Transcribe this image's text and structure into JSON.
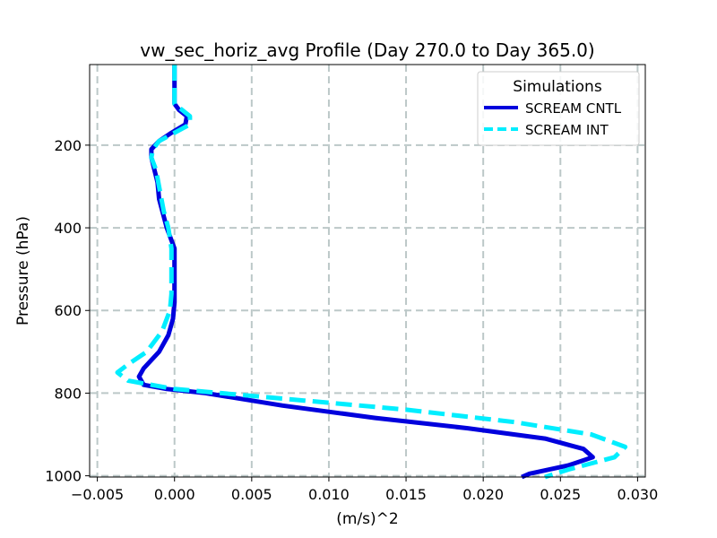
{
  "chart_data": {
    "type": "line",
    "title": "vw_sec_horiz_avg Profile (Day 270.0 to Day 365.0)",
    "xlabel": "(m/s)^2",
    "ylabel": "Pressure (hPa)",
    "xlim": [
      -0.0055,
      0.0305
    ],
    "ylim": [
      1003,
      5
    ],
    "y_inverted": true,
    "xticks": [
      -0.005,
      0.0,
      0.005,
      0.01,
      0.015,
      0.02,
      0.025,
      0.03
    ],
    "xtick_labels": [
      "−0.005",
      "0.000",
      "0.005",
      "0.010",
      "0.015",
      "0.020",
      "0.025",
      "0.030"
    ],
    "yticks": [
      200,
      400,
      600,
      800,
      1000
    ],
    "ytick_labels": [
      "200",
      "400",
      "600",
      "800",
      "1000"
    ],
    "grid": true,
    "legend": {
      "title": "Simulations",
      "placement": "top-right"
    },
    "series": [
      {
        "name": "SCREAM CNTL",
        "color": "#0000dd",
        "dash": "solid",
        "points": [
          [
            0.0,
            5
          ],
          [
            0.0,
            100
          ],
          [
            0.0003,
            115
          ],
          [
            0.0008,
            130
          ],
          [
            0.0007,
            150
          ],
          [
            -0.0002,
            170
          ],
          [
            -0.001,
            190
          ],
          [
            -0.0015,
            210
          ],
          [
            -0.0015,
            230
          ],
          [
            -0.0013,
            260
          ],
          [
            -0.0011,
            290
          ],
          [
            -0.001,
            330
          ],
          [
            -0.0005,
            400
          ],
          [
            0.0,
            450
          ],
          [
            0.0,
            520
          ],
          [
            0.0,
            580
          ],
          [
            -0.0001,
            620
          ],
          [
            -0.0004,
            660
          ],
          [
            -0.001,
            700
          ],
          [
            -0.002,
            740
          ],
          [
            -0.0023,
            760
          ],
          [
            -0.002,
            780
          ],
          [
            -0.0005,
            790
          ],
          [
            0.002,
            800
          ],
          [
            0.007,
            830
          ],
          [
            0.013,
            860
          ],
          [
            0.019,
            885
          ],
          [
            0.024,
            910
          ],
          [
            0.0265,
            935
          ],
          [
            0.0271,
            955
          ],
          [
            0.0255,
            975
          ],
          [
            0.023,
            995
          ],
          [
            0.0225,
            1003
          ]
        ]
      },
      {
        "name": "SCREAM INT",
        "color": "#00eeff",
        "dash": "dashed",
        "points": [
          [
            0.0,
            5
          ],
          [
            0.0,
            100
          ],
          [
            0.0005,
            115
          ],
          [
            0.001,
            130
          ],
          [
            0.001,
            150
          ],
          [
            0.0,
            170
          ],
          [
            -0.001,
            190
          ],
          [
            -0.0014,
            210
          ],
          [
            -0.0015,
            230
          ],
          [
            -0.0012,
            260
          ],
          [
            -0.001,
            300
          ],
          [
            -0.0007,
            360
          ],
          [
            -0.0004,
            400
          ],
          [
            -0.0002,
            450
          ],
          [
            -0.0002,
            500
          ],
          [
            -0.0002,
            560
          ],
          [
            -0.0003,
            600
          ],
          [
            -0.0008,
            650
          ],
          [
            -0.0018,
            700
          ],
          [
            -0.003,
            730
          ],
          [
            -0.0037,
            750
          ],
          [
            -0.003,
            770
          ],
          [
            0.0,
            790
          ],
          [
            0.006,
            810
          ],
          [
            0.015,
            840
          ],
          [
            0.022,
            870
          ],
          [
            0.027,
            900
          ],
          [
            0.0292,
            930
          ],
          [
            0.0285,
            955
          ],
          [
            0.0255,
            985
          ],
          [
            0.024,
            1003
          ]
        ]
      }
    ]
  }
}
